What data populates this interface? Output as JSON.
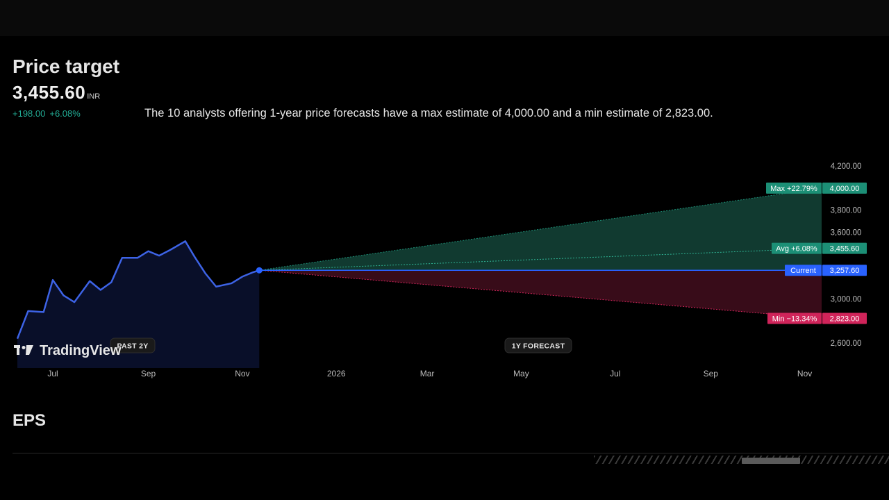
{
  "header": {
    "title": "Price target",
    "price": "3,455.60",
    "currency": "INR",
    "change_abs": "+198.00",
    "change_pct": "+6.08%",
    "summary": "The 10 analysts offering 1-year price forecasts have a max estimate of 4,000.00 and a min estimate of 2,823.00."
  },
  "eps": {
    "title": "EPS"
  },
  "colors": {
    "history_line": "#3d63e6",
    "max": "#1c8f76",
    "min": "#d0245a",
    "current": "#2962ff",
    "avg": "#1c8f76"
  },
  "chart_data": {
    "type": "line",
    "logo": "TradingView",
    "past_label": "PAST 2Y",
    "forecast_label": "1Y FORECAST",
    "x_ticks": [
      "Jul",
      "Sep",
      "Nov",
      "2026",
      "Mar",
      "May",
      "Jul",
      "Sep",
      "Nov"
    ],
    "y_ticks": [
      "4,200.00",
      "3,800.00",
      "3,600.00",
      "3,000.00",
      "2,600.00"
    ],
    "ylim": [
      2500,
      4300
    ],
    "history": {
      "x": [
        "2025-06-08",
        "2025-06-15",
        "2025-06-25",
        "2025-07-01",
        "2025-07-08",
        "2025-07-15",
        "2025-07-25",
        "2025-08-01",
        "2025-08-08",
        "2025-08-15",
        "2025-08-25",
        "2025-09-01",
        "2025-09-08",
        "2025-09-15",
        "2025-09-25",
        "2025-10-01",
        "2025-10-08",
        "2025-10-15",
        "2025-10-25",
        "2025-11-01",
        "2025-11-08",
        "2025-11-12"
      ],
      "y": [
        2640,
        2890,
        2880,
        3170,
        3030,
        2970,
        3160,
        3080,
        3150,
        3370,
        3370,
        3430,
        3390,
        3440,
        3520,
        3380,
        3230,
        3110,
        3140,
        3200,
        3240,
        3257.6
      ]
    },
    "forecast": {
      "start_date": "2025-11-12",
      "end_date": "2026-11-12",
      "current": 3257.6,
      "max": 4000.0,
      "avg": 3455.6,
      "min": 2823.0
    },
    "tags": {
      "max": {
        "label": "Max +22.79%",
        "value": "4,000.00"
      },
      "avg": {
        "label": "Avg +6.08%",
        "value": "3,455.60"
      },
      "current": {
        "label": "Current",
        "value": "3,257.60"
      },
      "min": {
        "label": "Min −13.34%",
        "value": "2,823.00"
      }
    }
  }
}
